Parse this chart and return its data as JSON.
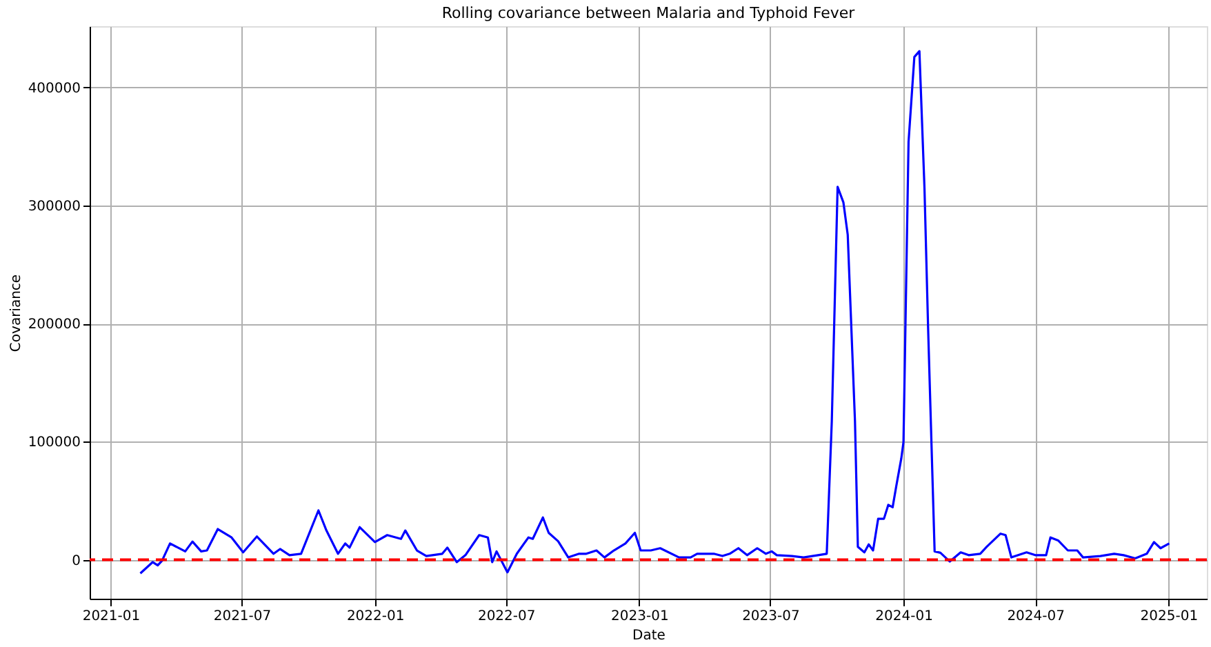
{
  "chart_data": {
    "type": "line",
    "title": "Rolling covariance between Malaria and Typhoid Fever",
    "xlabel": "Date",
    "ylabel": "Covariance",
    "x": [
      "2021-02-11",
      "2021-02-28",
      "2021-03-07",
      "2021-03-13",
      "2021-03-24",
      "2021-04-14",
      "2021-04-24",
      "2021-05-06",
      "2021-05-14",
      "2021-05-29",
      "2021-06-17",
      "2021-07-03",
      "2021-07-22",
      "2021-08-14",
      "2021-08-23",
      "2021-09-05",
      "2021-09-21",
      "2021-10-15",
      "2021-10-26",
      "2021-11-11",
      "2021-11-21",
      "2021-11-27",
      "2021-12-11",
      "2022-01-01",
      "2022-01-18",
      "2022-02-06",
      "2022-02-12",
      "2022-02-28",
      "2022-03-13",
      "2022-04-04",
      "2022-04-11",
      "2022-04-24",
      "2022-05-06",
      "2022-05-25",
      "2022-06-06",
      "2022-06-12",
      "2022-06-18",
      "2022-07-03",
      "2022-07-16",
      "2022-08-01",
      "2022-08-07",
      "2022-08-21",
      "2022-08-29",
      "2022-09-11",
      "2022-09-25",
      "2022-10-10",
      "2022-10-20",
      "2022-11-03",
      "2022-11-14",
      "2022-11-27",
      "2022-12-13",
      "2022-12-26",
      "2023-01-03",
      "2023-01-17",
      "2023-01-30",
      "2023-02-25",
      "2023-03-13",
      "2023-03-22",
      "2023-04-14",
      "2023-04-26",
      "2023-05-06",
      "2023-05-18",
      "2023-05-30",
      "2023-06-13",
      "2023-06-25",
      "2023-07-03",
      "2023-07-10",
      "2023-07-31",
      "2023-08-16",
      "2023-09-05",
      "2023-09-17",
      "2023-09-24",
      "2023-10-02",
      "2023-10-10",
      "2023-10-16",
      "2023-10-26",
      "2023-10-30",
      "2023-11-08",
      "2023-11-14",
      "2023-11-20",
      "2023-11-27",
      "2023-12-05",
      "2023-12-11",
      "2023-12-17",
      "2023-12-22",
      "2023-12-29",
      "2024-01-01",
      "2024-01-08",
      "2024-01-16",
      "2024-01-23",
      "2024-01-30",
      "2024-02-04",
      "2024-02-13",
      "2024-02-21",
      "2024-03-05",
      "2024-03-20",
      "2024-03-31",
      "2024-04-16",
      "2024-04-25",
      "2024-05-14",
      "2024-05-21",
      "2024-05-29",
      "2024-06-19",
      "2024-07-01",
      "2024-07-16",
      "2024-07-22",
      "2024-08-02",
      "2024-08-15",
      "2024-08-28",
      "2024-09-05",
      "2024-09-29",
      "2024-10-18",
      "2024-10-31",
      "2024-11-16",
      "2024-12-02",
      "2024-12-12",
      "2024-12-21",
      "2025-01-02"
    ],
    "series": [
      {
        "color": "#0000ff",
        "values": [
          -11500,
          -2000,
          -4700,
          -800,
          13800,
          7100,
          15400,
          7100,
          7900,
          26000,
          18900,
          6300,
          19700,
          5100,
          9100,
          3900,
          5100,
          41800,
          24800,
          5100,
          13800,
          10300,
          27600,
          15000,
          20900,
          17700,
          24800,
          7900,
          3200,
          5100,
          10300,
          -2000,
          3900,
          20900,
          18900,
          -2000,
          7100,
          -10600,
          5100,
          18900,
          17700,
          35800,
          22800,
          15700,
          2000,
          5100,
          5100,
          7900,
          2000,
          7900,
          13800,
          22800,
          7900,
          7900,
          9800,
          2000,
          2000,
          5100,
          5100,
          3200,
          5100,
          9800,
          3900,
          9800,
          5100,
          7100,
          3900,
          3200,
          2000,
          3900,
          5100,
          117500,
          315900,
          302800,
          275300,
          117500,
          11000,
          6300,
          13000,
          7900,
          34700,
          34700,
          46500,
          44500,
          62300,
          86000,
          99700,
          354100,
          425900,
          430900,
          314700,
          196400,
          7100,
          5900,
          -1500,
          6300,
          3900,
          5100,
          11000,
          22100,
          20900,
          2000,
          6300,
          3900,
          3900,
          18900,
          16200,
          7900,
          7900,
          2000,
          3200,
          5100,
          3900,
          1200,
          5100,
          15000,
          9800,
          13800
        ]
      }
    ],
    "xlim": [
      "2020-12-03",
      "2025-02-23"
    ],
    "xticks": [
      "2021-01",
      "2021-07",
      "2022-01",
      "2022-07",
      "2023-01",
      "2023-07",
      "2024-01",
      "2024-07",
      "2025-01"
    ],
    "ylim": [
      -33000,
      452000
    ],
    "yticks": [
      0,
      100000,
      200000,
      300000,
      400000
    ],
    "ref_lines": [
      {
        "axis": "y",
        "value": 0,
        "color": "#ff0000",
        "line_style": "dashed"
      }
    ],
    "grid": true,
    "line_style": "solid",
    "marker": "none"
  }
}
